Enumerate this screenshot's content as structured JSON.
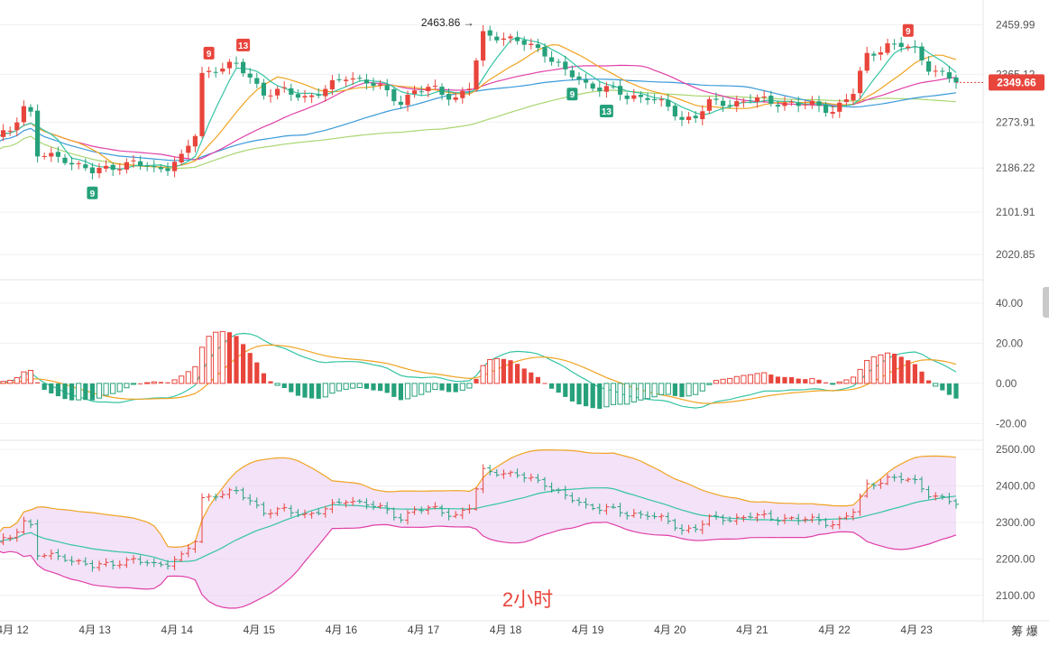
{
  "interval_watermark": "2小时",
  "brand_text": "筹 爆",
  "colors": {
    "up": "#e8453c",
    "down": "#26a17b",
    "ma_fast": "#35c4a3",
    "ma_mid": "#f0a321",
    "ma_slow": "#e040a8",
    "ma_blue": "#3a9ad9",
    "ma_green": "#a9d672",
    "dif": "#35c4a3",
    "dea": "#f0a321",
    "boll_upper": "#f0a321",
    "boll_mid": "#35c4a3",
    "boll_lower": "#e040a8",
    "boll_fill": "#e7c6f2",
    "last_price_bg": "#e8453c"
  },
  "x_axis": {
    "dates": [
      "4月 12",
      "4月 13",
      "4月 14",
      "4月 15",
      "4月 16",
      "4月 17",
      "4月 18",
      "4月 19",
      "4月 20",
      "4月 21",
      "4月 22",
      "4月 23"
    ]
  },
  "chart_data": [
    {
      "type": "candlestick",
      "name": "price",
      "y_ticks": [
        "2459.99",
        "2365.12",
        "2273.91",
        "2186.22",
        "2101.91",
        "2020.85"
      ],
      "y_tick_values": [
        2459.99,
        2365.12,
        2273.91,
        2186.22,
        2101.91,
        2020.85
      ],
      "ylim": [
        1990,
        2490
      ],
      "last_price": "2349.66",
      "last_price_value": 2349.66,
      "max_annotation": "2463.86",
      "max_value": 2463.86,
      "td_labels": [
        {
          "text": "9",
          "date": "4月 13",
          "color": "down"
        },
        {
          "text": "9",
          "date": "4月 14",
          "color": "up"
        },
        {
          "text": "13",
          "date": "4月 14",
          "color": "up"
        },
        {
          "text": "9",
          "date": "4月 18",
          "color": "down"
        },
        {
          "text": "13",
          "date": "4月 19",
          "color": "down"
        },
        {
          "text": "9",
          "date": "4月 23",
          "color": "up"
        }
      ],
      "series_desc": "2-hour candles 4月12 to 4月23 with five moving averages"
    },
    {
      "type": "macd",
      "name": "MACD",
      "y_ticks": [
        "40.00",
        "20.00",
        "0.00",
        "-20.00"
      ],
      "y_tick_values": [
        40,
        20,
        0,
        -20
      ],
      "ylim": [
        -27,
        48
      ]
    },
    {
      "type": "bollinger",
      "name": "BOLL",
      "y_ticks": [
        "2500.00",
        "2400.00",
        "2300.00",
        "2200.00",
        "2100.00"
      ],
      "y_tick_values": [
        2500,
        2400,
        2300,
        2200,
        2100
      ],
      "ylim": [
        2050,
        2520
      ]
    }
  ]
}
